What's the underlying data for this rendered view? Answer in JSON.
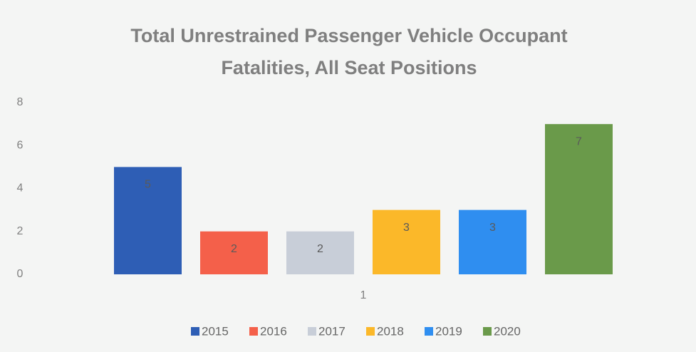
{
  "chart_data": {
    "type": "bar",
    "title": "Total Unrestrained Passenger Vehicle Occupant Fatalities, All Seat Positions",
    "categories": [
      "1"
    ],
    "series": [
      {
        "name": "2015",
        "color": "#2e5eb5",
        "values": [
          5
        ]
      },
      {
        "name": "2016",
        "color": "#f4604a",
        "values": [
          2
        ]
      },
      {
        "name": "2017",
        "color": "#c8ced8",
        "values": [
          2
        ]
      },
      {
        "name": "2018",
        "color": "#fbb829",
        "values": [
          3
        ]
      },
      {
        "name": "2019",
        "color": "#2f8ef0",
        "values": [
          3
        ]
      },
      {
        "name": "2020",
        "color": "#6a9a4a",
        "values": [
          7
        ]
      }
    ],
    "ylim": [
      0,
      8
    ],
    "yticks": [
      0,
      2,
      4,
      6,
      8
    ],
    "grid": false,
    "legend": "bottom",
    "data_labels": true
  }
}
